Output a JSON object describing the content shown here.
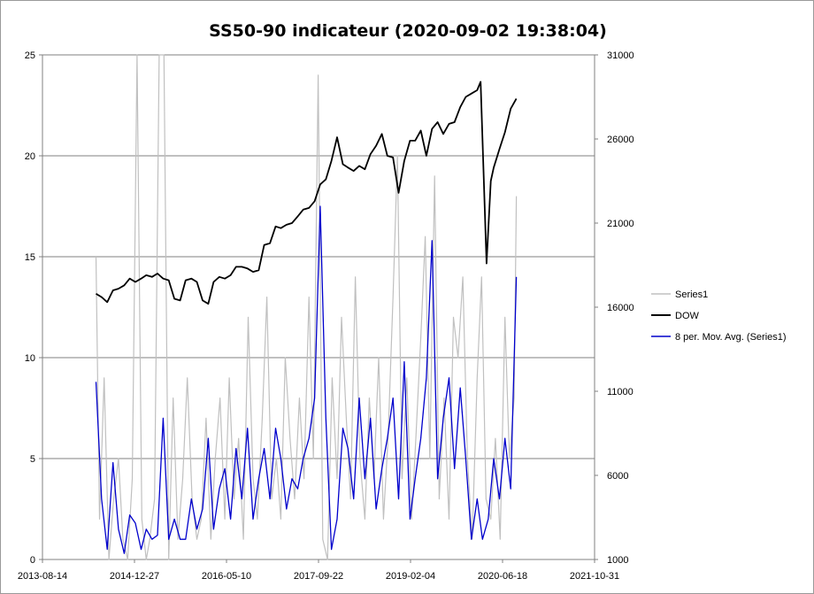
{
  "chart_data": {
    "type": "line",
    "title": "SS50-90 indicateur (2020-09-02 19:38:04)",
    "x_axis": {
      "type": "date",
      "range": [
        "2013-08-14",
        "2021-10-31"
      ],
      "tick_labels": [
        "2013-08-14",
        "2014-12-27",
        "2016-05-10",
        "2017-09-22",
        "2019-02-04",
        "2020-06-18",
        "2021-10-31"
      ]
    },
    "y_left": {
      "range": [
        0,
        25
      ],
      "ticks": [
        0,
        5,
        10,
        15,
        20,
        25
      ],
      "grid": true
    },
    "y_right": {
      "range": [
        1000,
        31000
      ],
      "ticks": [
        1000,
        6000,
        11000,
        16000,
        21000,
        26000,
        31000
      ]
    },
    "legend": {
      "placement": "right"
    },
    "series": [
      {
        "name": "Series1",
        "axis": "left",
        "color": "#c0c0c0",
        "x": [
          "2014-06-01",
          "2014-06-20",
          "2014-07-15",
          "2014-08-10",
          "2014-09-05",
          "2014-10-01",
          "2014-10-25",
          "2014-11-20",
          "2014-12-15",
          "2015-01-10",
          "2015-02-05",
          "2015-03-01",
          "2015-03-20",
          "2015-04-15",
          "2015-05-10",
          "2015-06-05",
          "2015-07-01",
          "2015-07-25",
          "2015-08-20",
          "2015-09-15",
          "2015-10-10",
          "2015-11-05",
          "2015-12-01",
          "2015-12-25",
          "2016-01-20",
          "2016-02-15",
          "2016-03-10",
          "2016-04-05",
          "2016-05-01",
          "2016-05-25",
          "2016-06-20",
          "2016-07-15",
          "2016-08-10",
          "2016-09-05",
          "2016-10-01",
          "2016-10-25",
          "2016-11-20",
          "2016-12-15",
          "2017-01-10",
          "2017-02-05",
          "2017-03-01",
          "2017-03-25",
          "2017-04-20",
          "2017-05-15",
          "2017-06-10",
          "2017-07-05",
          "2017-08-01",
          "2017-08-25",
          "2017-09-20",
          "2017-10-15",
          "2017-11-10",
          "2017-12-05",
          "2018-01-01",
          "2018-01-25",
          "2018-02-20",
          "2018-03-15",
          "2018-04-10",
          "2018-05-05",
          "2018-06-01",
          "2018-06-25",
          "2018-07-20",
          "2018-08-15",
          "2018-09-10",
          "2018-10-05",
          "2018-11-01",
          "2018-11-25",
          "2018-12-20",
          "2019-01-15",
          "2019-02-10",
          "2019-03-05",
          "2019-04-01",
          "2019-04-25",
          "2019-05-20",
          "2019-06-15",
          "2019-07-10",
          "2019-08-05",
          "2019-09-01",
          "2019-09-25",
          "2019-10-20",
          "2019-11-15",
          "2019-12-10",
          "2020-01-05",
          "2020-02-01",
          "2020-02-25",
          "2020-03-20",
          "2020-04-15",
          "2020-05-10",
          "2020-06-05",
          "2020-07-01",
          "2020-07-25",
          "2020-08-20",
          "2020-09-01"
        ],
        "values": [
          15,
          2,
          9,
          0,
          3,
          5,
          1,
          0,
          4,
          25,
          2,
          0,
          1,
          3,
          25,
          25,
          0,
          8,
          1,
          4,
          9,
          3,
          1,
          2,
          7,
          1,
          5,
          8,
          2,
          9,
          3,
          6,
          1,
          12,
          4,
          2,
          7,
          13,
          3,
          5,
          2,
          10,
          6,
          3,
          8,
          4,
          13,
          5,
          24,
          1,
          0,
          9,
          4,
          12,
          7,
          3,
          14,
          5,
          2,
          8,
          4,
          10,
          2,
          6,
          13,
          20,
          4,
          9,
          2,
          6,
          11,
          16,
          5,
          19,
          3,
          8,
          2,
          12,
          10,
          14,
          5,
          1,
          9,
          14,
          3,
          2,
          6,
          1,
          12,
          5,
          8,
          18
        ]
      },
      {
        "name": "DOW",
        "axis": "right",
        "color": "#000000",
        "x": [
          "2014-06-01",
          "2014-07-01",
          "2014-08-01",
          "2014-09-01",
          "2014-10-01",
          "2014-11-01",
          "2014-12-01",
          "2015-01-01",
          "2015-02-01",
          "2015-03-01",
          "2015-04-01",
          "2015-05-01",
          "2015-06-01",
          "2015-07-01",
          "2015-08-01",
          "2015-09-01",
          "2015-10-01",
          "2015-11-01",
          "2015-12-01",
          "2016-01-01",
          "2016-02-01",
          "2016-03-01",
          "2016-04-01",
          "2016-05-01",
          "2016-06-01",
          "2016-07-01",
          "2016-08-01",
          "2016-09-01",
          "2016-10-01",
          "2016-11-01",
          "2016-12-01",
          "2017-01-01",
          "2017-02-01",
          "2017-03-01",
          "2017-04-01",
          "2017-05-01",
          "2017-06-01",
          "2017-07-01",
          "2017-08-01",
          "2017-09-01",
          "2017-10-01",
          "2017-11-01",
          "2017-12-01",
          "2018-01-01",
          "2018-02-01",
          "2018-03-01",
          "2018-04-01",
          "2018-05-01",
          "2018-06-01",
          "2018-07-01",
          "2018-08-01",
          "2018-09-01",
          "2018-10-01",
          "2018-11-01",
          "2018-12-01",
          "2019-01-01",
          "2019-02-01",
          "2019-03-01",
          "2019-04-01",
          "2019-05-01",
          "2019-06-01",
          "2019-07-01",
          "2019-08-01",
          "2019-09-01",
          "2019-10-01",
          "2019-11-01",
          "2019-12-01",
          "2020-01-01",
          "2020-02-01",
          "2020-02-20",
          "2020-03-23",
          "2020-04-15",
          "2020-05-01",
          "2020-06-01",
          "2020-07-01",
          "2020-08-01",
          "2020-09-01"
        ],
        "values": [
          16800,
          16600,
          16300,
          17000,
          17100,
          17300,
          17700,
          17500,
          17700,
          17900,
          17800,
          18000,
          17700,
          17600,
          16500,
          16400,
          17600,
          17700,
          17500,
          16400,
          16200,
          17500,
          17800,
          17700,
          17900,
          18400,
          18400,
          18300,
          18100,
          18200,
          19700,
          19800,
          20800,
          20700,
          20900,
          21000,
          21400,
          21800,
          21900,
          22300,
          23300,
          23600,
          24700,
          26100,
          24500,
          24300,
          24100,
          24400,
          24200,
          25100,
          25600,
          26300,
          25000,
          24900,
          22800,
          24700,
          25900,
          25900,
          26500,
          25000,
          26600,
          27000,
          26300,
          26900,
          27000,
          27900,
          28500,
          28700,
          28900,
          29400,
          18600,
          23500,
          24300,
          25400,
          26400,
          27800,
          28400
        ]
      },
      {
        "name": "8 per. Mov. Avg. (Series1)",
        "axis": "left",
        "color": "#0000cc",
        "x": [
          "2014-06-01",
          "2014-07-01",
          "2014-08-01",
          "2014-09-01",
          "2014-10-01",
          "2014-11-01",
          "2014-12-01",
          "2015-01-01",
          "2015-02-01",
          "2015-03-01",
          "2015-04-01",
          "2015-05-01",
          "2015-06-01",
          "2015-07-01",
          "2015-08-01",
          "2015-09-01",
          "2015-10-01",
          "2015-11-01",
          "2015-12-01",
          "2016-01-01",
          "2016-02-01",
          "2016-03-01",
          "2016-04-01",
          "2016-05-01",
          "2016-06-01",
          "2016-07-01",
          "2016-08-01",
          "2016-09-01",
          "2016-10-01",
          "2016-11-01",
          "2016-12-01",
          "2017-01-01",
          "2017-02-01",
          "2017-03-01",
          "2017-04-01",
          "2017-05-01",
          "2017-06-01",
          "2017-07-01",
          "2017-08-01",
          "2017-09-01",
          "2017-10-01",
          "2017-11-01",
          "2017-12-01",
          "2018-01-01",
          "2018-02-01",
          "2018-03-01",
          "2018-04-01",
          "2018-05-01",
          "2018-06-01",
          "2018-07-01",
          "2018-08-01",
          "2018-09-01",
          "2018-10-01",
          "2018-11-01",
          "2018-12-01",
          "2019-01-01",
          "2019-02-01",
          "2019-03-01",
          "2019-04-01",
          "2019-05-01",
          "2019-06-01",
          "2019-07-01",
          "2019-08-01",
          "2019-09-01",
          "2019-10-01",
          "2019-11-01",
          "2019-12-01",
          "2020-01-01",
          "2020-02-01",
          "2020-03-01",
          "2020-04-01",
          "2020-05-01",
          "2020-06-01",
          "2020-07-01",
          "2020-08-01",
          "2020-09-01"
        ],
        "values": [
          8.8,
          3,
          0.5,
          4.8,
          1.5,
          0.3,
          2.2,
          1.8,
          0.5,
          1.5,
          1,
          1.2,
          7,
          1,
          2,
          1,
          1,
          3,
          1.5,
          2.5,
          6,
          1.5,
          3.5,
          4.5,
          2,
          5.5,
          3,
          6.5,
          2,
          4,
          5.5,
          3,
          6.5,
          5,
          2.5,
          4,
          3.5,
          5,
          6,
          8,
          17.5,
          7,
          0.5,
          2,
          6.5,
          5.5,
          3,
          8,
          4,
          7,
          2.5,
          4.5,
          6,
          8,
          3,
          9.8,
          2,
          4,
          6,
          9,
          15.8,
          4,
          7,
          9,
          4.5,
          8.5,
          5,
          1,
          3,
          1,
          2,
          5,
          3,
          6,
          3.5,
          14
        ]
      }
    ]
  }
}
